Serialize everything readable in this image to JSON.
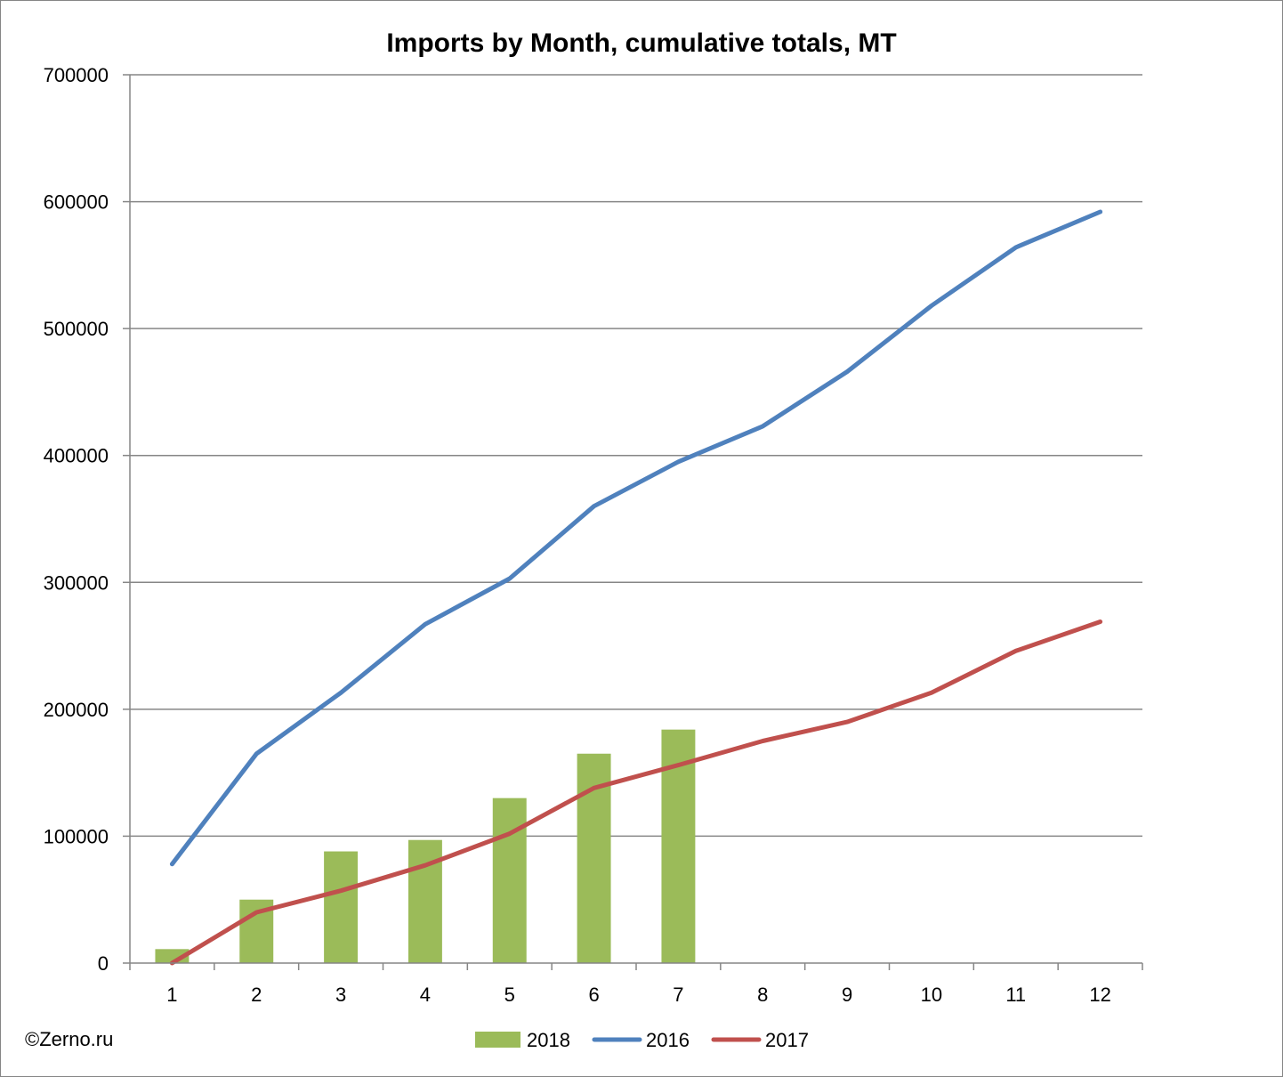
{
  "chart_data": {
    "type": "bar",
    "title": "Imports by Month, cumulative totals, MT",
    "xlabel": "",
    "ylabel": "",
    "categories": [
      "1",
      "2",
      "3",
      "4",
      "5",
      "6",
      "7",
      "8",
      "9",
      "10",
      "11",
      "12"
    ],
    "ylim": [
      0,
      700000
    ],
    "yticks": [
      "0",
      "100000",
      "200000",
      "300000",
      "400000",
      "500000",
      "600000",
      "700000"
    ],
    "grid": true,
    "legend_position": "bottom",
    "series": [
      {
        "name": "2018",
        "type": "bar",
        "color": "#9bbb59",
        "values": [
          11000,
          50000,
          88000,
          97000,
          130000,
          165000,
          184000,
          null,
          null,
          null,
          null,
          null
        ]
      },
      {
        "name": "2016",
        "type": "line",
        "color": "#4f81bd",
        "values": [
          78000,
          165000,
          213000,
          267000,
          303000,
          360000,
          395000,
          423000,
          466000,
          518000,
          564000,
          592000
        ]
      },
      {
        "name": "2017",
        "type": "line",
        "color": "#c0504d",
        "values": [
          0,
          40000,
          57000,
          77000,
          102000,
          138000,
          156000,
          175000,
          190000,
          213000,
          246000,
          269000
        ]
      }
    ]
  },
  "credit": "©Zerno.ru"
}
